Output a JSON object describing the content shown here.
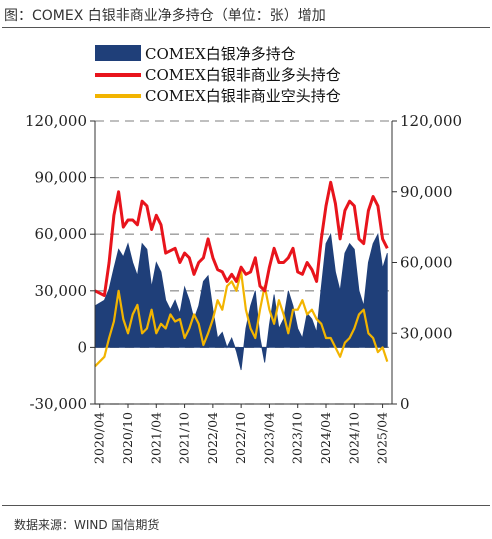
{
  "header": {
    "title": "图：COMEX 白银非商业净多持仓（单位：张）增加"
  },
  "footer": {
    "source": "数据来源：WIND 国信期货"
  },
  "colors": {
    "net": "#1f3f79",
    "long": "#e8141c",
    "short": "#f2b400",
    "grid": "#999999"
  },
  "chart_data": {
    "type": "line",
    "title": "COMEX 白银非商业净多持仓（单位：张）增加",
    "x_tick_labels": [
      "2020/04",
      "2020/10",
      "2021/04",
      "2021/10",
      "2022/04",
      "2022/10",
      "2023/04",
      "2023/10",
      "2024/04",
      "2024/10",
      "2025/04"
    ],
    "y_left": {
      "range": [
        -30000,
        120000
      ],
      "tick_labels": [
        "120,000",
        "90,000",
        "60,000",
        "30,000",
        "0",
        "-30,000"
      ],
      "ticks": [
        120000,
        90000,
        60000,
        30000,
        0,
        -30000
      ]
    },
    "y_right": {
      "range": [
        0,
        120000
      ],
      "tick_labels": [
        "120,000",
        "90,000",
        "60,000",
        "30,000",
        "0"
      ],
      "ticks": [
        120000,
        90000,
        60000,
        30000,
        0
      ]
    },
    "grid": "dashed horizontal",
    "legend_position": "top",
    "series": [
      {
        "name": "COMEX白银净多持仓",
        "style": "area",
        "axis": "left",
        "x": [
          "2020-03",
          "2020-05",
          "2020-06",
          "2020-07",
          "2020-08",
          "2020-09",
          "2020-10",
          "2020-11",
          "2020-12",
          "2021-01",
          "2021-02",
          "2021-03",
          "2021-04",
          "2021-05",
          "2021-06",
          "2021-07",
          "2021-08",
          "2021-09",
          "2021-10",
          "2021-11",
          "2021-12",
          "2022-01",
          "2022-02",
          "2022-03",
          "2022-04",
          "2022-05",
          "2022-06",
          "2022-07",
          "2022-08",
          "2022-09",
          "2022-10",
          "2022-11",
          "2022-12",
          "2023-01",
          "2023-02",
          "2023-03",
          "2023-04",
          "2023-05",
          "2023-06",
          "2023-07",
          "2023-08",
          "2023-09",
          "2023-10",
          "2023-11",
          "2023-12",
          "2024-01",
          "2024-02",
          "2024-03",
          "2024-04",
          "2024-05",
          "2024-06",
          "2024-07",
          "2024-08",
          "2024-09",
          "2024-10",
          "2024-11",
          "2024-12",
          "2025-01",
          "2025-02",
          "2025-03",
          "2025-04",
          "2025-05"
        ],
        "values": [
          22000,
          25000,
          31000,
          42000,
          52000,
          48000,
          55000,
          45000,
          38000,
          55000,
          52000,
          32000,
          45000,
          40000,
          25000,
          20000,
          25000,
          18000,
          32000,
          25000,
          15000,
          22000,
          35000,
          38000,
          20000,
          5000,
          8000,
          0,
          5000,
          -2000,
          -12000,
          10000,
          22000,
          30000,
          5000,
          -8000,
          12000,
          28000,
          10000,
          15000,
          30000,
          22000,
          10000,
          5000,
          18000,
          15000,
          8000,
          32000,
          55000,
          60000,
          40000,
          30000,
          50000,
          55000,
          52000,
          30000,
          22000,
          45000,
          55000,
          60000,
          42000,
          50000
        ]
      },
      {
        "name": "COMEX白银非商业多头持仓",
        "style": "line",
        "axis": "right",
        "x": [
          "2020-03",
          "2020-05",
          "2020-06",
          "2020-07",
          "2020-08",
          "2020-09",
          "2020-10",
          "2020-11",
          "2020-12",
          "2021-01",
          "2021-02",
          "2021-03",
          "2021-04",
          "2021-05",
          "2021-06",
          "2021-07",
          "2021-08",
          "2021-09",
          "2021-10",
          "2021-11",
          "2021-12",
          "2022-01",
          "2022-02",
          "2022-03",
          "2022-04",
          "2022-05",
          "2022-06",
          "2022-07",
          "2022-08",
          "2022-09",
          "2022-10",
          "2022-11",
          "2022-12",
          "2023-01",
          "2023-02",
          "2023-03",
          "2023-04",
          "2023-05",
          "2023-06",
          "2023-07",
          "2023-08",
          "2023-09",
          "2023-10",
          "2023-11",
          "2023-12",
          "2024-01",
          "2024-02",
          "2024-03",
          "2024-04",
          "2024-05",
          "2024-06",
          "2024-07",
          "2024-08",
          "2024-09",
          "2024-10",
          "2024-11",
          "2024-12",
          "2025-01",
          "2025-02",
          "2025-03",
          "2025-04",
          "2025-05"
        ],
        "values": [
          48000,
          46000,
          60000,
          80000,
          90000,
          75000,
          78000,
          78000,
          76000,
          86000,
          84000,
          74000,
          80000,
          76000,
          64000,
          65000,
          66000,
          60000,
          64000,
          62000,
          55000,
          60000,
          62000,
          70000,
          62000,
          57000,
          56000,
          52000,
          55000,
          52000,
          58000,
          55000,
          56000,
          62000,
          50000,
          48000,
          58000,
          66000,
          60000,
          60000,
          62000,
          66000,
          56000,
          55000,
          60000,
          57000,
          52000,
          70000,
          84000,
          94000,
          85000,
          70000,
          82000,
          86000,
          84000,
          70000,
          68000,
          82000,
          88000,
          84000,
          70000,
          66000
        ]
      },
      {
        "name": "COMEX白银非商业空头持仓",
        "style": "line",
        "axis": "right",
        "x": [
          "2020-03",
          "2020-05",
          "2020-06",
          "2020-07",
          "2020-08",
          "2020-09",
          "2020-10",
          "2020-11",
          "2020-12",
          "2021-01",
          "2021-02",
          "2021-03",
          "2021-04",
          "2021-05",
          "2021-06",
          "2021-07",
          "2021-08",
          "2021-09",
          "2021-10",
          "2021-11",
          "2021-12",
          "2022-01",
          "2022-02",
          "2022-03",
          "2022-04",
          "2022-05",
          "2022-06",
          "2022-07",
          "2022-08",
          "2022-09",
          "2022-10",
          "2022-11",
          "2022-12",
          "2023-01",
          "2023-02",
          "2023-03",
          "2023-04",
          "2023-05",
          "2023-06",
          "2023-07",
          "2023-08",
          "2023-09",
          "2023-10",
          "2023-11",
          "2023-12",
          "2024-01",
          "2024-02",
          "2024-03",
          "2024-04",
          "2024-05",
          "2024-06",
          "2024-07",
          "2024-08",
          "2024-09",
          "2024-10",
          "2024-11",
          "2024-12",
          "2025-01",
          "2025-02",
          "2025-03",
          "2025-04",
          "2025-05"
        ],
        "values": [
          16000,
          20000,
          28000,
          35000,
          48000,
          36000,
          30000,
          38000,
          42000,
          30000,
          32000,
          40000,
          30000,
          34000,
          32000,
          38000,
          35000,
          36000,
          28000,
          32000,
          38000,
          34000,
          25000,
          30000,
          36000,
          44000,
          40000,
          50000,
          52000,
          48000,
          56000,
          40000,
          32000,
          28000,
          40000,
          50000,
          40000,
          34000,
          44000,
          38000,
          30000,
          40000,
          40000,
          44000,
          38000,
          40000,
          36000,
          34000,
          28000,
          28000,
          24000,
          20000,
          26000,
          28000,
          32000,
          38000,
          40000,
          30000,
          28000,
          22000,
          24000,
          18000
        ]
      }
    ]
  }
}
